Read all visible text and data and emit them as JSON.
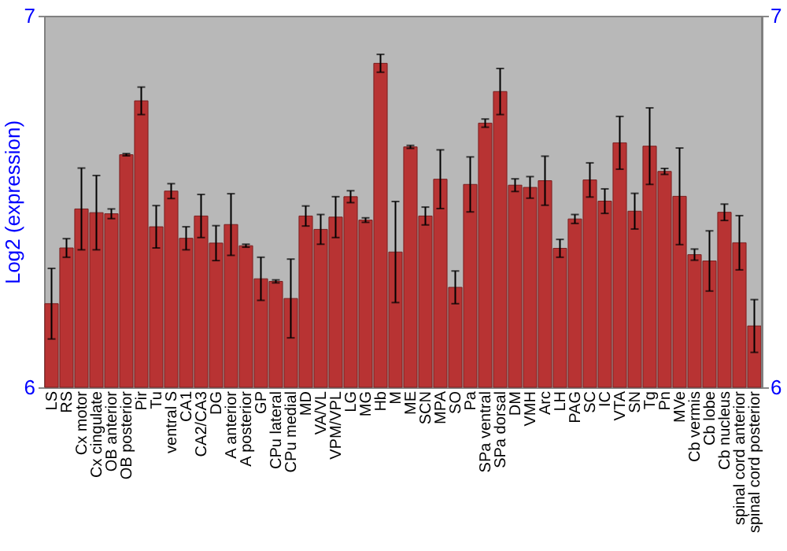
{
  "chart_data": {
    "type": "bar",
    "ylabel": "Log2 (expression)",
    "categories": [
      "LS",
      "RS",
      "Cx motor",
      "Cx cingulate",
      "OB anterior",
      "OB posterior",
      "Pir",
      "Tu",
      "ventral S",
      "CA1",
      "CA2/CA3",
      "DG",
      "A anterior",
      "A posterior",
      "GP",
      "CPu lateral",
      "CPu medial",
      "MD",
      "VA/VL",
      "VPM/VPL",
      "LG",
      "MG",
      "Hb",
      "M",
      "ME",
      "SCN",
      "MPA",
      "SO",
      "Pa",
      "SPa ventral",
      "SPa dorsal",
      "DM",
      "VMH",
      "Arc",
      "LH",
      "PAG",
      "SC",
      "IC",
      "VTA",
      "SN",
      "Tg",
      "Pn",
      "MVe",
      "Cb vermis",
      "Cb lobe",
      "Cb nucleus",
      "spinal cord anterior",
      "spinal cord posterior"
    ],
    "values": [
      6.225,
      6.375,
      6.48,
      6.47,
      6.467,
      6.626,
      6.771,
      6.432,
      6.528,
      6.401,
      6.461,
      6.388,
      6.438,
      6.381,
      6.292,
      6.285,
      6.239,
      6.461,
      6.425,
      6.458,
      6.513,
      6.45,
      6.872,
      6.364,
      6.647,
      6.461,
      6.56,
      6.269,
      6.546,
      6.711,
      6.796,
      6.544,
      6.538,
      6.556,
      6.374,
      6.453,
      6.558,
      6.501,
      6.658,
      6.474,
      6.649,
      6.581,
      6.514,
      6.357,
      6.34,
      6.471,
      6.389,
      6.165
    ],
    "errors": [
      0.095,
      0.025,
      0.11,
      0.1,
      0.013,
      0.003,
      0.037,
      0.057,
      0.02,
      0.031,
      0.058,
      0.047,
      0.083,
      0.004,
      0.058,
      0.004,
      0.106,
      0.027,
      0.04,
      0.055,
      0.016,
      0.006,
      0.024,
      0.136,
      0.004,
      0.024,
      0.079,
      0.044,
      0.074,
      0.011,
      0.062,
      0.017,
      0.029,
      0.066,
      0.024,
      0.012,
      0.046,
      0.033,
      0.071,
      0.048,
      0.103,
      0.008,
      0.13,
      0.015,
      0.081,
      0.022,
      0.073,
      0.071
    ],
    "color": "#b83333",
    "ylim": [
      6,
      7
    ],
    "yticks": [
      6,
      7
    ],
    "y2lim": [
      6,
      7
    ],
    "y2ticks": [
      6,
      7
    ],
    "grid": false
  }
}
